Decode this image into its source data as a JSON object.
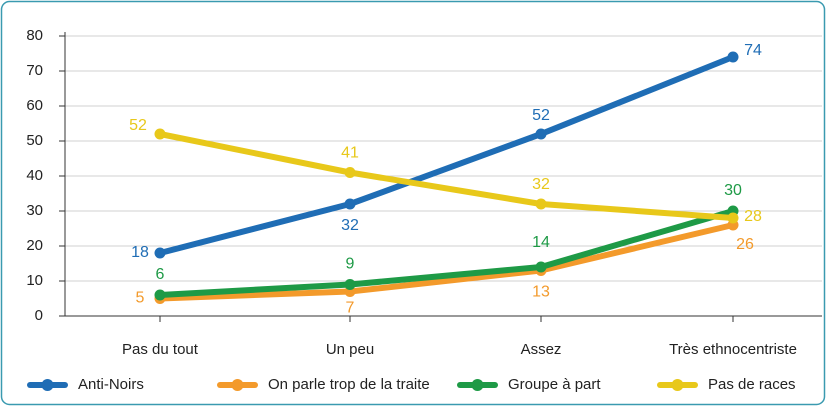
{
  "chart_data": {
    "type": "line",
    "categories": [
      "Pas du tout",
      "Un peu",
      "Assez",
      "Très ethnocentriste"
    ],
    "series": [
      {
        "name": "Anti-Noirs",
        "color": "#1f6db5",
        "values": [
          18,
          32,
          52,
          74
        ]
      },
      {
        "name": "On parle trop de la traite",
        "color": "#f39a2b",
        "values": [
          5,
          7,
          13,
          26
        ]
      },
      {
        "name": "Groupe à part",
        "color": "#1e9a46",
        "values": [
          6,
          9,
          14,
          30
        ]
      },
      {
        "name": "Pas de races",
        "color": "#e8c81a",
        "values": [
          52,
          41,
          32,
          28
        ]
      }
    ],
    "ylim": [
      0,
      80
    ],
    "yticks": [
      0,
      10,
      20,
      30,
      40,
      50,
      60,
      70,
      80
    ],
    "grid": true,
    "legend": "bottom"
  }
}
